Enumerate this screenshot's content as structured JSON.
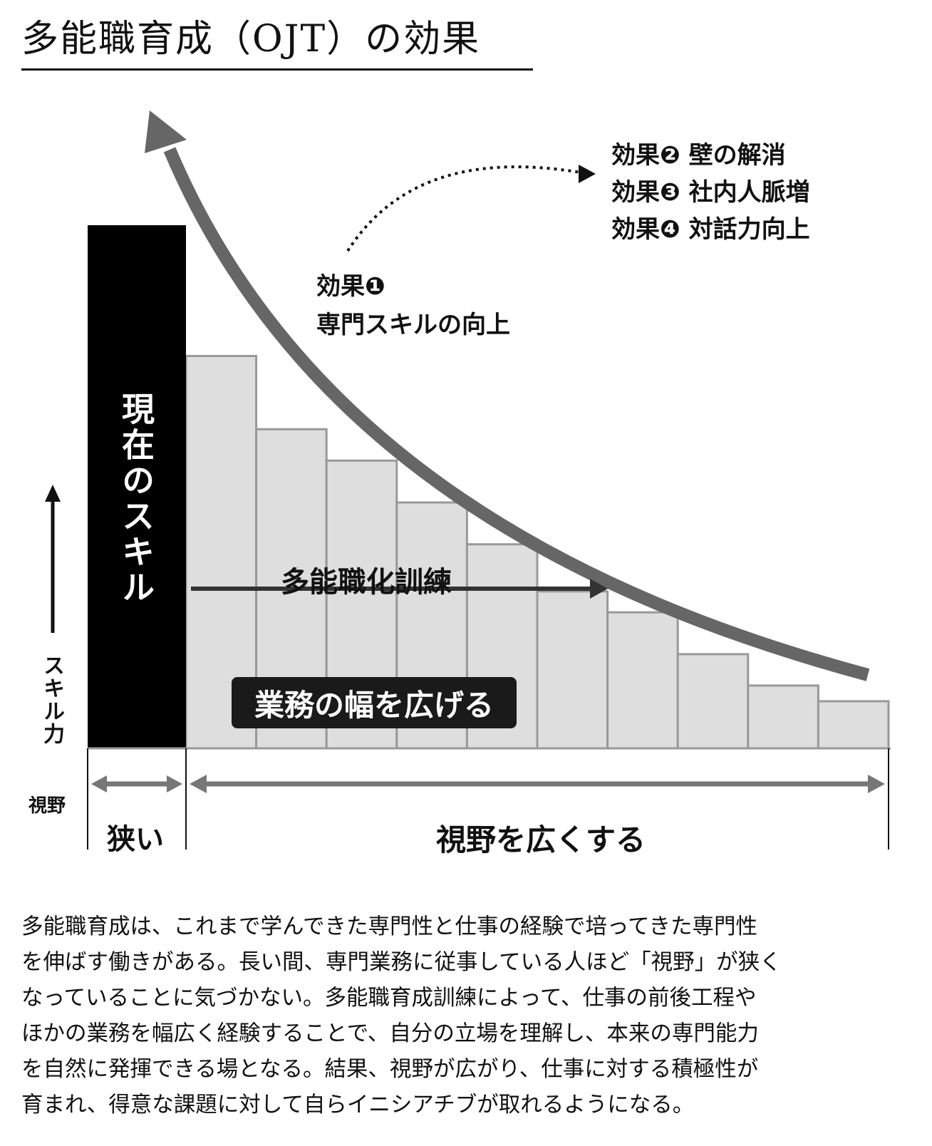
{
  "title": "多能職育成（OJT）の効果",
  "diagram": {
    "effects_group": [
      "効果❷ 壁の解消",
      "効果❸ 社内人脈増",
      "効果❹ 対話力向上"
    ],
    "effect1": [
      "効果❶",
      "専門スキルの向上"
    ],
    "current_skill": "現在のスキル",
    "training": "多能職化訓練",
    "widen_tasks": "業務の幅を広げる",
    "skill_axis": "スキル力",
    "view_axis": "視野",
    "narrow": "狭い",
    "broaden_view": "視野を広くする",
    "colors": {
      "bar": "#000000",
      "steps_fill": "#dedede",
      "steps_stroke": "#999999",
      "curve": "#666666",
      "arrow": "#333333"
    },
    "step_levels": [
      0.75,
      0.61,
      0.55,
      0.47,
      0.39,
      0.3,
      0.26,
      0.18,
      0.12,
      0.09
    ]
  },
  "body_lines": [
    "多能職育成は、これまで学んできた専門性と仕事の経験で培ってきた専門性",
    "を伸ばす働きがある。長い間、専門業務に従事している人ほど「視野」が狭く",
    "なっていることに気づかない。多能職育成訓練によって、仕事の前後工程や",
    "ほかの業務を幅広く経験することで、自分の立場を理解し、本来の専門能力",
    "を自然に発揮できる場となる。結果、視野が広がり、仕事に対する積極性が",
    "育まれ、得意な課題に対して自らイニシアチブが取れるようになる。"
  ]
}
